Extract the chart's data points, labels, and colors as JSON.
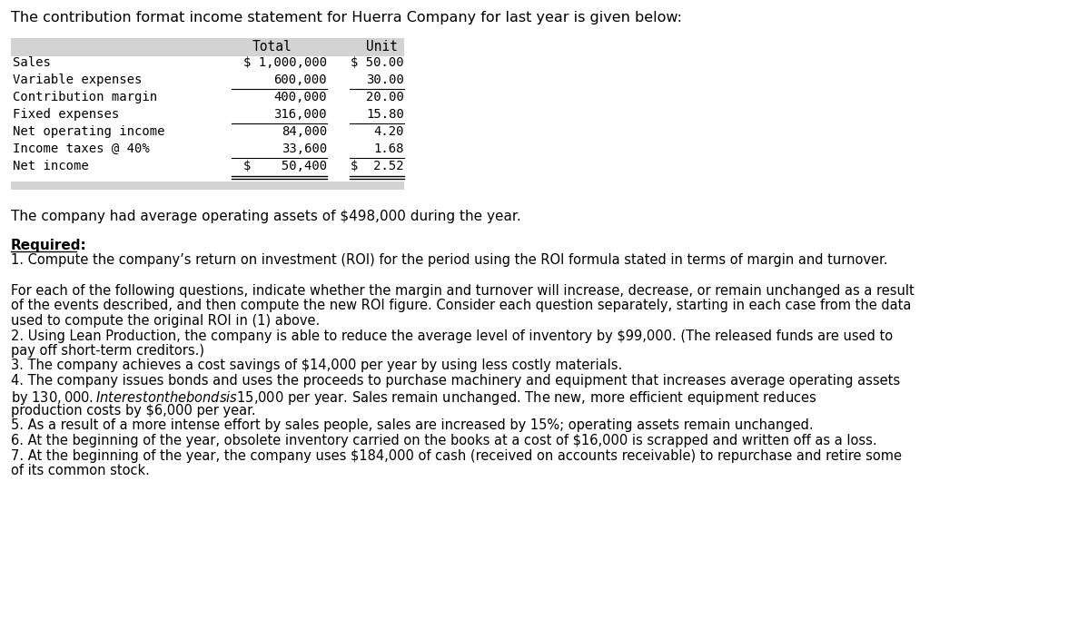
{
  "title_line": "The contribution format income statement for Huerra Company for last year is given below:",
  "table_rows": [
    [
      "Sales",
      "$ 1,000,000",
      "$ 50.00"
    ],
    [
      "Variable expenses",
      "600,000",
      "30.00"
    ],
    [
      "Contribution margin",
      "400,000",
      "20.00"
    ],
    [
      "Fixed expenses",
      "316,000",
      "15.80"
    ],
    [
      "Net operating income",
      "84,000",
      "4.20"
    ],
    [
      "Income taxes @ 40%",
      "33,600",
      "1.68"
    ],
    [
      "Net income",
      "$    50,400",
      "$  2.52"
    ]
  ],
  "underline_after": [
    1,
    3,
    5
  ],
  "double_underline_after": [
    6
  ],
  "avg_assets_line": "The company had average operating assets of $498,000 during the year.",
  "required_label": "Required:",
  "question1": "1. Compute the company’s return on investment (ROI) for the period using the ROI formula stated in terms of margin and turnover.",
  "para1": "For each of the following questions, indicate whether the margin and turnover will increase, decrease, or remain unchanged as a result of the events described, and then compute the new ROI figure. Consider each question separately, starting in each case from the data used to compute the original ROI in (1) above.",
  "question2": "2. Using Lean Production, the company is able to reduce the average level of inventory by $99,000. (The released funds are used to pay off short-term creditors.)",
  "question3": "3. The company achieves a cost savings of $14,000 per year by using less costly materials.",
  "question4": "4. The company issues bonds and uses the proceeds to purchase machinery and equipment that increases average operating assets by $130,000. Interest on the bonds is $15,000 per year. Sales remain unchanged. The new, more efficient equipment reduces production costs by $6,000 per year.",
  "question5": "5. As a result of a more intense effort by sales people, sales are increased by 15%; operating assets remain unchanged.",
  "question6": "6. At the beginning of the year, obsolete inventory carried on the books at a cost of $16,000 is scrapped and written off as a loss.",
  "question7": "7. At the beginning of the year, the company uses $184,000 of cash (received on accounts receivable) to repurchase and retire some of its common stock.",
  "bg_color": "#ffffff",
  "text_color": "#000000",
  "table_header_bg": "#d3d3d3",
  "mono_font": "DejaVu Sans Mono",
  "sans_font": "DejaVu Sans",
  "fig_w": 11.87,
  "fig_h": 6.82,
  "dpi": 100
}
